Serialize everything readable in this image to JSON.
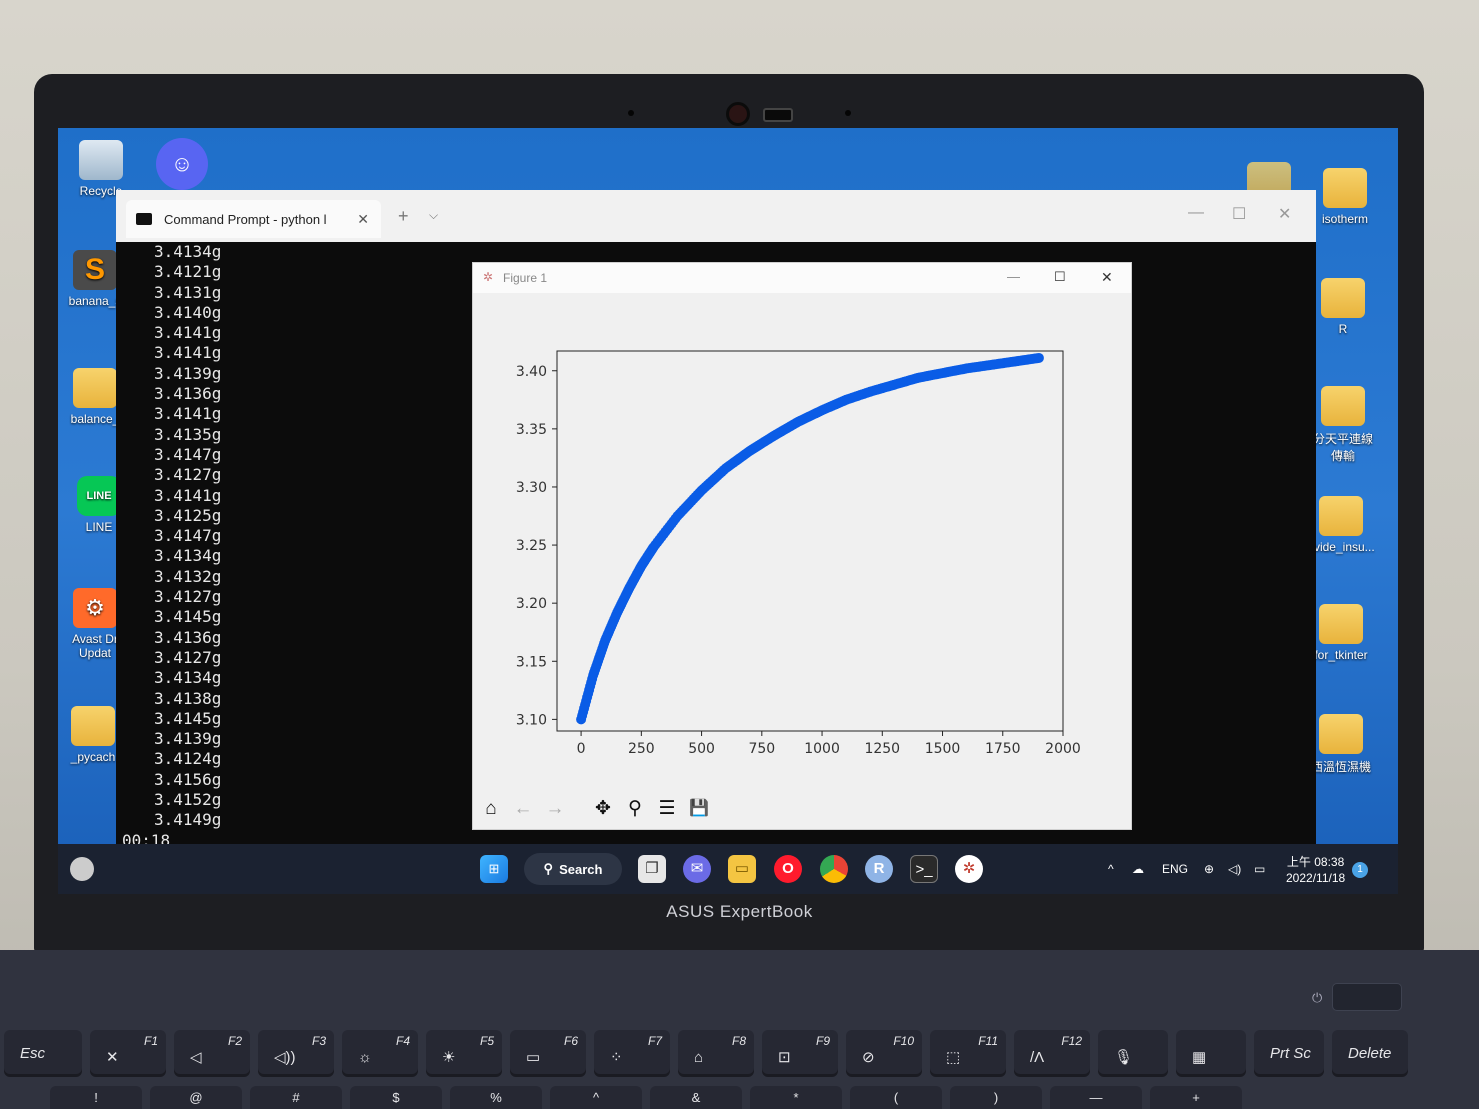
{
  "desktop": {
    "left_icons": [
      {
        "label": "Recycle",
        "icon": "recycle-bin-icon"
      },
      {
        "label": "banana_s",
        "icon": "sublime-text-icon"
      },
      {
        "label": "balance_",
        "icon": "folder-icon"
      },
      {
        "label": "LINE",
        "icon": "line-app-icon"
      },
      {
        "label": "Avast Dr",
        "label2": "Updat",
        "icon": "avast-icon"
      },
      {
        "label": "_pycach",
        "icon": "folder-icon"
      }
    ],
    "right_icons": [
      {
        "label": "isotherm",
        "icon": "folder-icon"
      },
      {
        "label": "R",
        "icon": "folder-icon"
      },
      {
        "label": "分天平連線",
        "label2": "傳輸",
        "icon": "folder-icon"
      },
      {
        "label": "ovide_insu...",
        "icon": "folder-icon"
      },
      {
        "label": "for_tkinter",
        "icon": "folder-icon"
      },
      {
        "label": "西溫恆濕機",
        "icon": "folder-icon"
      }
    ]
  },
  "terminal": {
    "tab_title": "Command Prompt - python l",
    "new_tab": "+",
    "tab_menu": "⌵",
    "lines": [
      "3.4134g",
      "3.4121g",
      "3.4131g",
      "3.4140g",
      "3.4141g",
      "3.4141g",
      "3.4139g",
      "3.4136g",
      "3.4141g",
      "3.4135g",
      "3.4147g",
      "3.4127g",
      "3.4141g",
      "3.4125g",
      "3.4147g",
      "3.4134g",
      "3.4132g",
      "3.4127g",
      "3.4145g",
      "3.4136g",
      "3.4127g",
      "3.4134g",
      "3.4138g",
      "3.4145g",
      "3.4139g",
      "3.4124g",
      "3.4156g",
      "3.4152g",
      "3.4149g"
    ],
    "last_line": "00:18"
  },
  "figure": {
    "title": "Figure 1",
    "minimize": "—",
    "maximize": "☐",
    "close": "✕",
    "toolbar": {
      "home": "⌂",
      "back": "←",
      "forward": "→",
      "pan": "✥",
      "zoom": "⚲",
      "configure": "☰",
      "save": "💾"
    }
  },
  "chart_data": {
    "type": "scatter",
    "title": "",
    "xlabel": "",
    "ylabel": "",
    "xlim": [
      -100,
      2000
    ],
    "ylim": [
      3.09,
      3.417
    ],
    "xticks": [
      0,
      250,
      500,
      750,
      1000,
      1250,
      1500,
      1750,
      2000
    ],
    "yticks": [
      3.1,
      3.15,
      3.2,
      3.25,
      3.3,
      3.35,
      3.4
    ],
    "xtick_labels": [
      "0",
      "250",
      "500",
      "750",
      "1000",
      "1250",
      "1500",
      "1750",
      "2000"
    ],
    "ytick_labels": [
      "3.10",
      "3.15",
      "3.20",
      "3.25",
      "3.30",
      "3.35",
      "3.40"
    ],
    "series": [
      {
        "color": "#0a5ce6",
        "x": [
          0,
          50,
          100,
          150,
          200,
          250,
          300,
          400,
          500,
          600,
          700,
          800,
          900,
          1000,
          1100,
          1200,
          1300,
          1400,
          1500,
          1600,
          1700,
          1800,
          1900
        ],
        "y": [
          3.1,
          3.138,
          3.168,
          3.192,
          3.213,
          3.232,
          3.248,
          3.275,
          3.297,
          3.316,
          3.331,
          3.344,
          3.356,
          3.366,
          3.375,
          3.382,
          3.388,
          3.394,
          3.398,
          3.402,
          3.405,
          3.408,
          3.411
        ]
      }
    ],
    "grid": false
  },
  "taskbar": {
    "search_label": "Search",
    "tray": {
      "chevron": "^",
      "language": "ENG"
    },
    "clock_time": "上午 08:38",
    "clock_date": "2022/11/18",
    "notification_count": "1"
  },
  "laptop": {
    "brand": "ASUS ExpertBook"
  },
  "keyboard": {
    "keys": [
      {
        "label": "Esc",
        "w": 78
      },
      {
        "label": "F1",
        "glyph": "✕",
        "w": 76
      },
      {
        "label": "F2",
        "glyph": "◁",
        "w": 76
      },
      {
        "label": "F3",
        "glyph": "◁))",
        "w": 76
      },
      {
        "label": "F4",
        "glyph": "☼",
        "w": 76
      },
      {
        "label": "F5",
        "glyph": "☀",
        "w": 76
      },
      {
        "label": "F6",
        "glyph": "▭",
        "w": 76
      },
      {
        "label": "F7",
        "glyph": "⁘",
        "w": 76
      },
      {
        "label": "F8",
        "glyph": "⌂",
        "w": 76
      },
      {
        "label": "F9",
        "glyph": "⊡",
        "w": 76
      },
      {
        "label": "F10",
        "glyph": "⊘",
        "w": 76
      },
      {
        "label": "F11",
        "glyph": "⬚",
        "w": 76
      },
      {
        "label": "F12",
        "glyph": "/Λ",
        "w": 76
      },
      {
        "label": "",
        "glyph": "🎙",
        "w": 70
      },
      {
        "label": "",
        "glyph": "▦",
        "w": 70
      },
      {
        "label": "Prt Sc",
        "w": 70
      },
      {
        "label": "Delete",
        "w": 76
      }
    ],
    "row2": [
      "!",
      "@",
      "#",
      "$",
      "%",
      "^",
      "&",
      "*",
      "(",
      ")",
      "—",
      "+"
    ]
  }
}
